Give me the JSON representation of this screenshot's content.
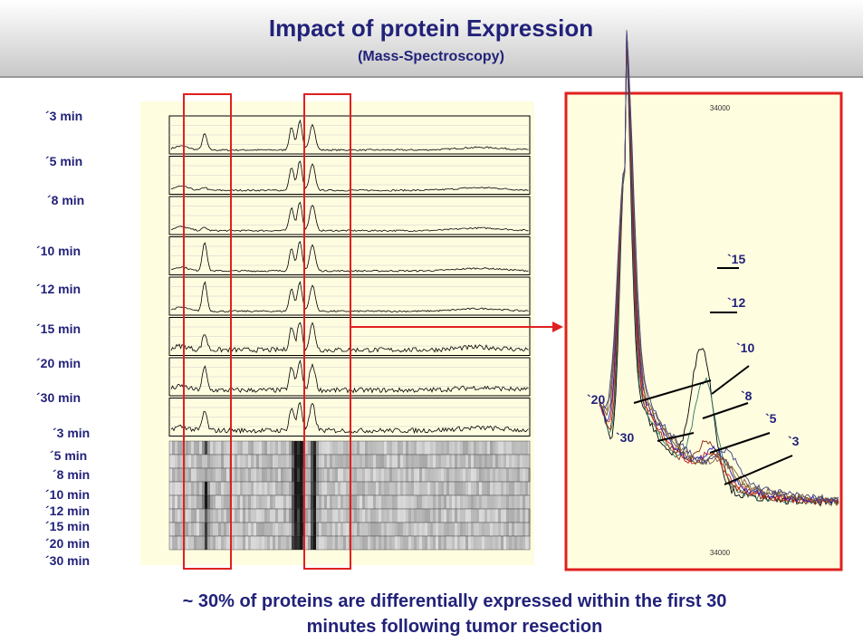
{
  "header": {
    "title": "Impact of protein Expression",
    "subtitle": "(Mass-Spectroscopy)"
  },
  "spectra_labels": [
    "´3 min",
    "´5 min",
    "´8 min",
    "´10 min",
    "´12 min",
    "´15 min",
    "´20 min",
    "´30 min"
  ],
  "gel_labels": [
    "´3 min",
    "´5 min",
    "´8 min",
    "´10 min",
    "´12 min",
    "´15 min",
    "´20 min",
    "´30 min"
  ],
  "zoom": {
    "top_label": "34000",
    "bottom_label": "34000",
    "curve_labels": [
      "`15",
      "`12",
      "`10",
      "`20",
      "`8",
      "`5",
      "`30",
      "`3"
    ]
  },
  "footer": [
    "~ 30% of proteins are differentially expressed within the first 30",
    "minutes following tumor resection"
  ]
}
